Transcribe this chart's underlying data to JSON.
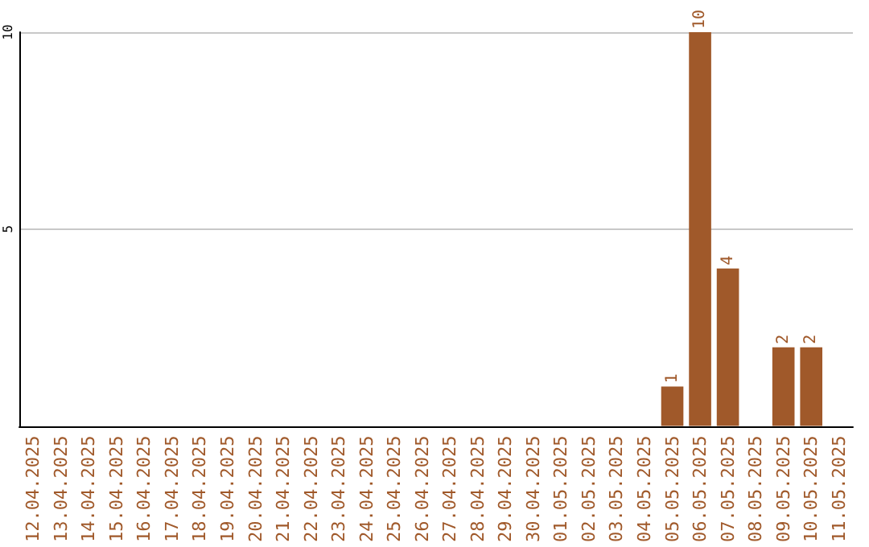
{
  "chart_data": {
    "type": "bar",
    "categories": [
      "12.04.2025",
      "13.04.2025",
      "14.04.2025",
      "15.04.2025",
      "16.04.2025",
      "17.04.2025",
      "18.04.2025",
      "19.04.2025",
      "20.04.2025",
      "21.04.2025",
      "22.04.2025",
      "23.04.2025",
      "24.04.2025",
      "25.04.2025",
      "26.04.2025",
      "27.04.2025",
      "28.04.2025",
      "29.04.2025",
      "30.04.2025",
      "01.05.2025",
      "02.05.2025",
      "03.05.2025",
      "04.05.2025",
      "05.05.2025",
      "06.05.2025",
      "07.05.2025",
      "08.05.2025",
      "09.05.2025",
      "10.05.2025",
      "11.05.2025"
    ],
    "values": [
      0,
      0,
      0,
      0,
      0,
      0,
      0,
      0,
      0,
      0,
      0,
      0,
      0,
      0,
      0,
      0,
      0,
      0,
      0,
      0,
      0,
      0,
      0,
      1,
      10,
      4,
      0,
      2,
      2,
      0
    ],
    "value_labels": [
      null,
      null,
      null,
      null,
      null,
      null,
      null,
      null,
      null,
      null,
      null,
      null,
      null,
      null,
      null,
      null,
      null,
      null,
      null,
      null,
      null,
      null,
      null,
      "1",
      "10",
      "4",
      null,
      "2",
      "2",
      null
    ],
    "color": "#a0592a",
    "ylim": [
      0,
      10
    ],
    "yticks": [
      5,
      10
    ],
    "grid": "y"
  }
}
